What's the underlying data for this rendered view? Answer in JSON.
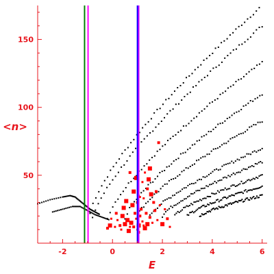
{
  "chart_data": {
    "type": "scatter",
    "xlabel": "E",
    "ylabel": "<n>",
    "xlim": [
      -3.0,
      6.2
    ],
    "ylim": [
      0,
      175
    ],
    "x_ticks": [
      -2,
      0,
      2,
      4,
      6
    ],
    "y_ticks": [
      50,
      100,
      150
    ],
    "x_tick_labels": [
      "-2",
      "0",
      "2",
      "4",
      "6"
    ],
    "y_tick_labels": [
      "50",
      "100",
      "150"
    ],
    "grid": false,
    "vertical_lines": [
      {
        "x": -1.12,
        "color": "#008000"
      },
      {
        "x": -0.98,
        "color": "#ff00ff"
      },
      {
        "x": 1.0,
        "color": "#0000ff"
      },
      {
        "x": 1.05,
        "color": "#cc00ff"
      }
    ],
    "series": [
      {
        "color": "#000000",
        "description_type": "bands",
        "bands": [
          {
            "x_start": -0.9,
            "x_end": 6.0,
            "y_start": 22,
            "y_end": 175
          },
          {
            "x_start": -0.8,
            "x_end": 6.0,
            "y_start": 18,
            "y_end": 160
          },
          {
            "x_start": -0.2,
            "x_end": 6.0,
            "y_start": 18,
            "y_end": 133
          },
          {
            "x_start": 0.5,
            "x_end": 6.0,
            "y_start": 18,
            "y_end": 110
          },
          {
            "x_start": 1.0,
            "x_end": 6.0,
            "y_start": 20,
            "y_end": 90
          },
          {
            "x_start": 1.5,
            "x_end": 6.0,
            "y_start": 20,
            "y_end": 70
          },
          {
            "x_start": 2.0,
            "x_end": 6.0,
            "y_start": 20,
            "y_end": 60
          },
          {
            "x_start": 2.5,
            "x_end": 6.0,
            "y_start": 20,
            "y_end": 50
          },
          {
            "x_start": 3.0,
            "x_end": 6.0,
            "y_start": 20,
            "y_end": 42
          },
          {
            "x_start": 3.5,
            "x_end": 6.0,
            "y_start": 20,
            "y_end": 35
          }
        ],
        "curve": [
          [
            -3.0,
            29
          ],
          [
            -2.5,
            32
          ],
          [
            -2.0,
            34
          ],
          [
            -1.7,
            35
          ],
          [
            -1.5,
            34
          ],
          [
            -1.3,
            31
          ],
          [
            -1.1,
            28
          ],
          [
            -0.9,
            25
          ],
          [
            -0.7,
            23
          ],
          [
            -0.5,
            21
          ]
        ],
        "curve2": [
          [
            -2.4,
            23
          ],
          [
            -2.0,
            25
          ],
          [
            -1.6,
            27
          ],
          [
            -1.3,
            27
          ],
          [
            -1.0,
            24
          ],
          [
            -0.7,
            21
          ],
          [
            -0.4,
            19
          ],
          [
            -0.1,
            17
          ]
        ]
      },
      {
        "color": "#ff0000",
        "points": [
          [
            0.75,
            15
          ],
          [
            0.85,
            12
          ],
          [
            0.95,
            18
          ],
          [
            1.05,
            13
          ],
          [
            1.1,
            20
          ],
          [
            1.2,
            16
          ],
          [
            1.3,
            11
          ],
          [
            0.9,
            22
          ],
          [
            1.0,
            10
          ],
          [
            1.4,
            14
          ],
          [
            1.5,
            19
          ],
          [
            0.7,
            12
          ],
          [
            0.6,
            17
          ],
          [
            1.15,
            25
          ],
          [
            1.25,
            13
          ],
          [
            0.8,
            28
          ],
          [
            1.35,
            22
          ],
          [
            1.6,
            15
          ],
          [
            0.5,
            14
          ],
          [
            0.3,
            13
          ],
          [
            0.1,
            12
          ],
          [
            -0.1,
            13
          ],
          [
            -0.2,
            11
          ],
          [
            0.2,
            17
          ],
          [
            0.4,
            20
          ],
          [
            1.7,
            24
          ],
          [
            1.8,
            17
          ],
          [
            2.0,
            14
          ],
          [
            2.2,
            18
          ],
          [
            1.9,
            28
          ],
          [
            1.55,
            36
          ],
          [
            1.4,
            40
          ],
          [
            1.2,
            45
          ],
          [
            0.95,
            48
          ],
          [
            0.7,
            52
          ],
          [
            1.1,
            34
          ],
          [
            0.85,
            38
          ],
          [
            1.65,
            30
          ],
          [
            1.3,
            52
          ],
          [
            1.45,
            47
          ],
          [
            1.75,
            38
          ],
          [
            2.1,
            25
          ],
          [
            0.45,
            26
          ],
          [
            0.15,
            22
          ],
          [
            -0.05,
            18
          ],
          [
            0.55,
            31
          ],
          [
            1.0,
            30
          ],
          [
            1.25,
            33
          ],
          [
            1.5,
            55
          ],
          [
            1.85,
            74
          ],
          [
            2.3,
            12
          ],
          [
            0.65,
            9
          ],
          [
            1.05,
            8
          ],
          [
            0.35,
            10
          ]
        ]
      }
    ]
  }
}
